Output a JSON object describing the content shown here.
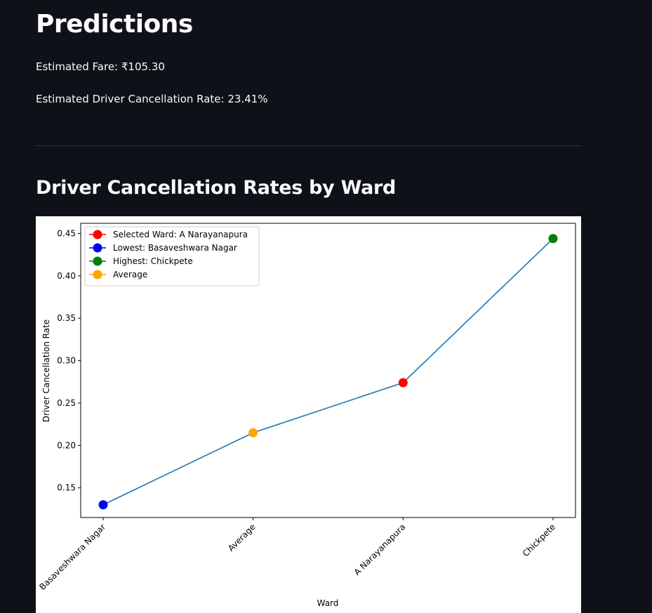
{
  "page": {
    "title": "Predictions",
    "fare_line": "Estimated Fare: ₹105.30",
    "cancellation_line": "Estimated Driver Cancellation Rate: 23.41%",
    "section_title": "Driver Cancellation Rates by Ward"
  },
  "colors": {
    "background": "#0e1117",
    "line": "#1f77b4",
    "selected": "#ff0000",
    "lowest": "#0000ff",
    "highest": "#008000",
    "average": "#ffa500"
  },
  "chart_data": {
    "type": "line",
    "xlabel": "Ward",
    "ylabel": "Driver Cancellation Rate",
    "categories": [
      "Basaveshwara Nagar",
      "Average",
      "A Narayanapura",
      "Chickpete"
    ],
    "values": [
      0.13,
      0.215,
      0.274,
      0.444
    ],
    "ylim": [
      0.115,
      0.462
    ],
    "yticks": [
      0.15,
      0.2,
      0.25,
      0.3,
      0.35,
      0.4,
      0.45
    ],
    "ytick_labels": [
      "0.15",
      "0.20",
      "0.25",
      "0.30",
      "0.35",
      "0.40",
      "0.45"
    ],
    "point_colors": [
      "#0000ff",
      "#ffa500",
      "#ff0000",
      "#008000"
    ],
    "legend": {
      "placement": "upper-left",
      "entries": [
        {
          "label": "Selected Ward: A Narayanapura",
          "color": "#ff0000"
        },
        {
          "label": "Lowest: Basaveshwara Nagar",
          "color": "#0000ff"
        },
        {
          "label": "Highest: Chickpete",
          "color": "#008000"
        },
        {
          "label": "Average",
          "color": "#ffa500"
        }
      ]
    },
    "grid": false
  }
}
